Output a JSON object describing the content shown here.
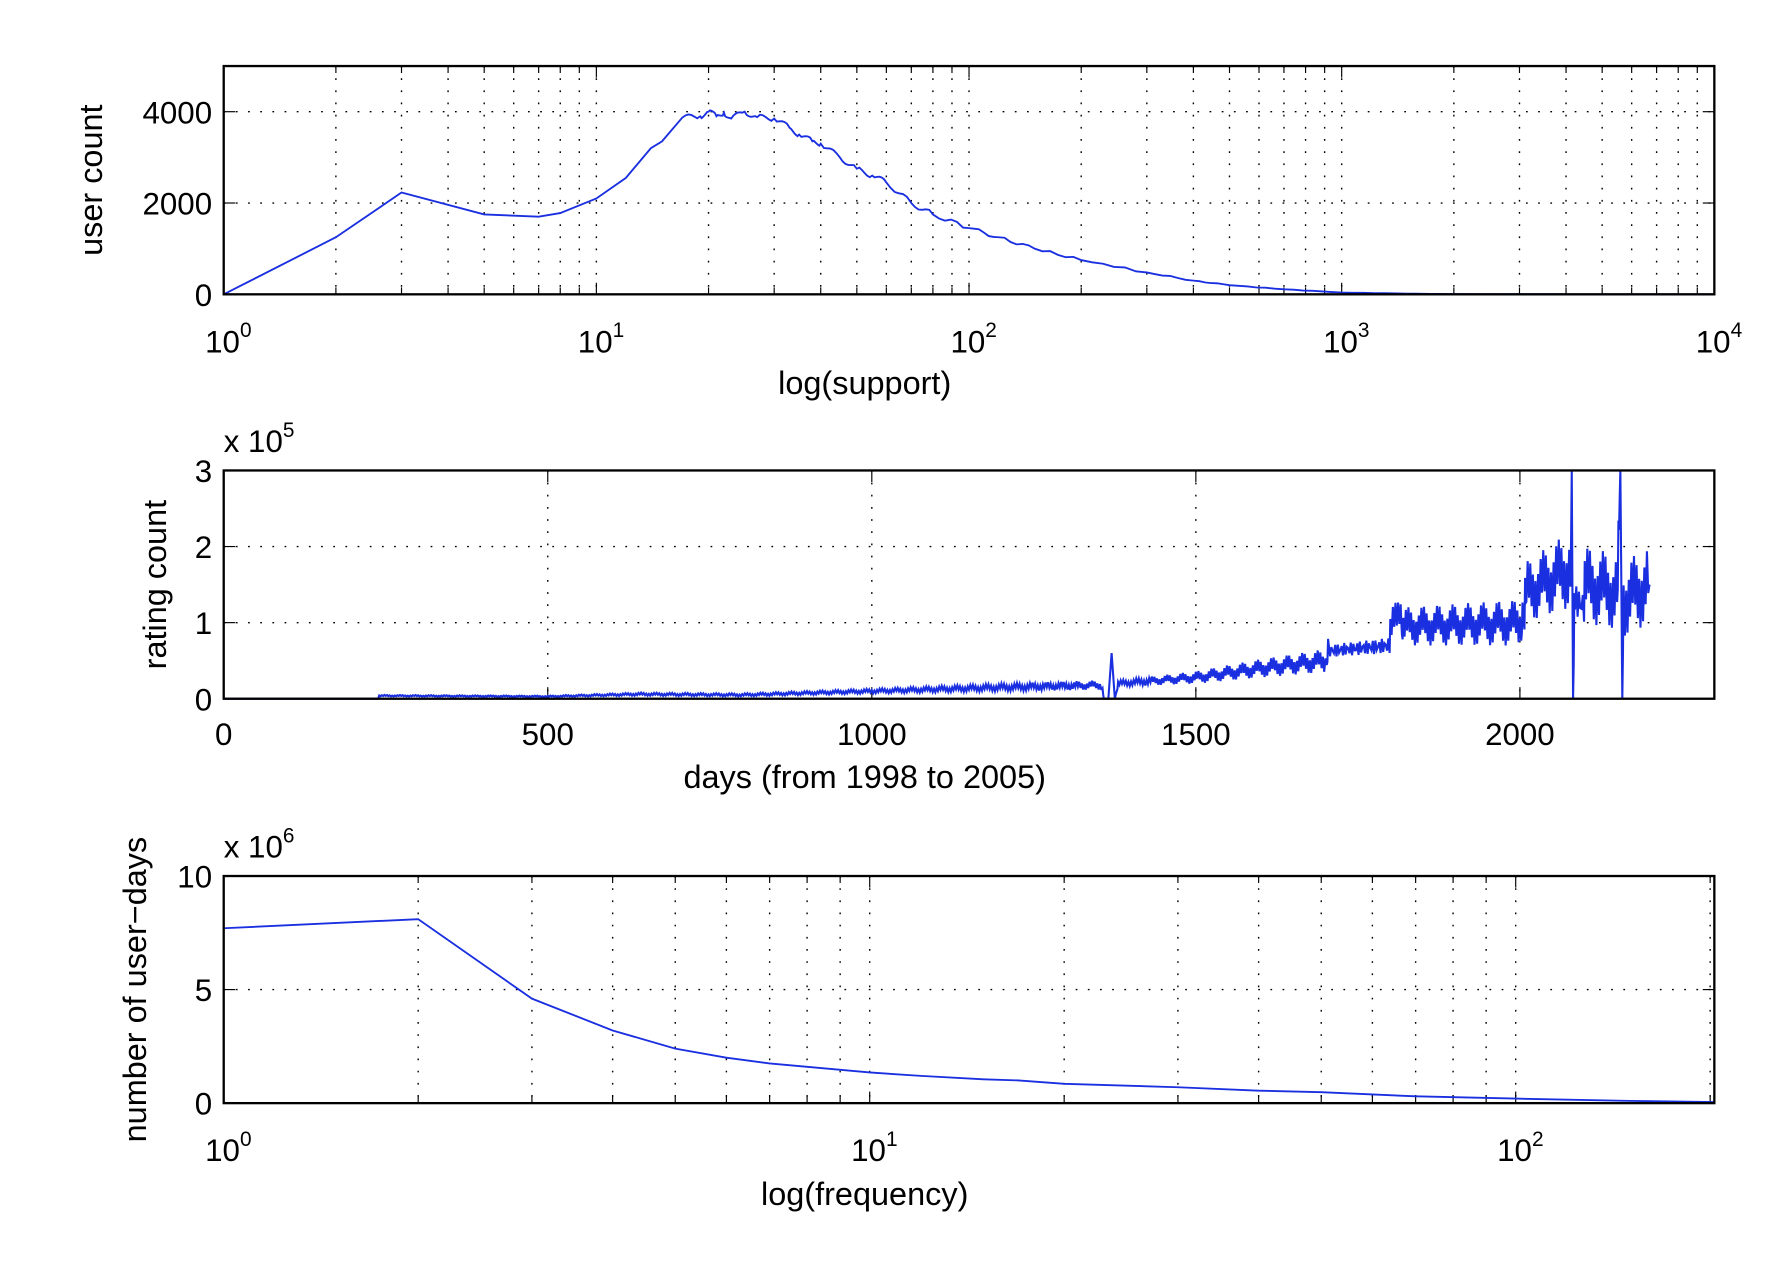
{
  "line_color": "#1a2fe0",
  "chart_data": [
    {
      "type": "line",
      "title": "",
      "xlabel": "log(support)",
      "ylabel": "user count",
      "xscale": "log",
      "xlim": [
        1,
        10000
      ],
      "ylim": [
        0,
        5000
      ],
      "xticks": [
        {
          "base": "10",
          "exp": "0",
          "v": 1
        },
        {
          "base": "10",
          "exp": "1",
          "v": 10
        },
        {
          "base": "10",
          "exp": "2",
          "v": 100
        },
        {
          "base": "10",
          "exp": "3",
          "v": 1000
        },
        {
          "base": "10",
          "exp": "4",
          "v": 10000
        }
      ],
      "yticks": [
        {
          "label": "0",
          "v": 0
        },
        {
          "label": "2000",
          "v": 2000
        },
        {
          "label": "4000",
          "v": 4000
        }
      ],
      "grid": true,
      "x": [
        1,
        2,
        3,
        5,
        7,
        8,
        10,
        12,
        14,
        15,
        17,
        19,
        20,
        21,
        22,
        23,
        25,
        27,
        30,
        33,
        35,
        38,
        40,
        45,
        50,
        55,
        60,
        70,
        80,
        100,
        120,
        150,
        200,
        300,
        400,
        500,
        700,
        1000,
        1500,
        2000,
        5000,
        10000
      ],
      "y": [
        0,
        1250,
        2230,
        1750,
        1700,
        1780,
        2100,
        2550,
        3200,
        3350,
        3870,
        3900,
        4000,
        3900,
        3980,
        3850,
        4000,
        3880,
        3850,
        3650,
        3500,
        3350,
        3300,
        3000,
        2750,
        2600,
        2450,
        2000,
        1750,
        1450,
        1250,
        1000,
        750,
        480,
        300,
        200,
        110,
        40,
        15,
        5,
        1,
        0
      ]
    },
    {
      "type": "line",
      "xlabel": "days (from 1998 to 2005)",
      "ylabel": "rating count",
      "multiplier": {
        "base": "x 10",
        "exp": "5"
      },
      "xscale": "linear",
      "xlim": [
        0,
        2300
      ],
      "ylim": [
        0,
        3
      ],
      "xticks": [
        {
          "label": "0",
          "v": 0
        },
        {
          "label": "500",
          "v": 500
        },
        {
          "label": "1000",
          "v": 1000
        },
        {
          "label": "1500",
          "v": 1500
        },
        {
          "label": "2000",
          "v": 2000
        }
      ],
      "yticks": [
        {
          "label": "0",
          "v": 0
        },
        {
          "label": "1",
          "v": 1
        },
        {
          "label": "2",
          "v": 2
        },
        {
          "label": "3",
          "v": 3
        }
      ],
      "grid": true,
      "x": [
        0,
        238,
        240,
        500,
        640,
        800,
        1000,
        1200,
        1355,
        1358,
        1365,
        1370,
        1375,
        1380,
        1500,
        1600,
        1700,
        1705,
        1800,
        1815,
        1820,
        2000,
        2010,
        2078,
        2080,
        2082,
        2085,
        2100,
        2150,
        2155,
        2158,
        2160,
        2200
      ],
      "y": [
        0,
        0,
        0.04,
        0.03,
        0.06,
        0.05,
        0.1,
        0.15,
        0.18,
        0,
        0,
        0.6,
        0,
        0.2,
        0.28,
        0.4,
        0.5,
        0.75,
        0.85,
        1.25,
        0.95,
        1.0,
        1.4,
        1.7,
        3,
        0,
        1.6,
        1.5,
        1.4,
        3,
        0,
        1.3,
        1.5
      ],
      "weekly_oscillation_amplitude": [
        0,
        0,
        0.01,
        0.01,
        0.02,
        0.02,
        0.03,
        0.05,
        0.06,
        0,
        0,
        0,
        0,
        0.04,
        0.08,
        0.12,
        0.15,
        0.2,
        0.25,
        0.25,
        0.25,
        0.3,
        0.4,
        0.5,
        0,
        0,
        0.5,
        0.5,
        0.5,
        0,
        0,
        0.5,
        0.5
      ]
    },
    {
      "type": "line",
      "xlabel": "log(frequency)",
      "ylabel": "number of user−days",
      "multiplier": {
        "base": "x 10",
        "exp": "6"
      },
      "xscale": "log",
      "xlim": [
        1,
        203
      ],
      "ylim": [
        0,
        10
      ],
      "xticks": [
        {
          "base": "10",
          "exp": "0",
          "v": 1
        },
        {
          "base": "10",
          "exp": "1",
          "v": 10
        },
        {
          "base": "10",
          "exp": "2",
          "v": 100
        }
      ],
      "yticks": [
        {
          "label": "0",
          "v": 0
        },
        {
          "label": "5",
          "v": 5
        },
        {
          "label": "10",
          "v": 10
        }
      ],
      "grid": true,
      "x": [
        1,
        2,
        3,
        4,
        5,
        6,
        7,
        8,
        10,
        12,
        15,
        17,
        20,
        30,
        40,
        50,
        70,
        100,
        150,
        203
      ],
      "y": [
        7.7,
        8.1,
        4.6,
        3.2,
        2.4,
        2.0,
        1.75,
        1.6,
        1.35,
        1.2,
        1.05,
        1.0,
        0.85,
        0.7,
        0.55,
        0.48,
        0.3,
        0.2,
        0.1,
        0.05
      ]
    }
  ]
}
